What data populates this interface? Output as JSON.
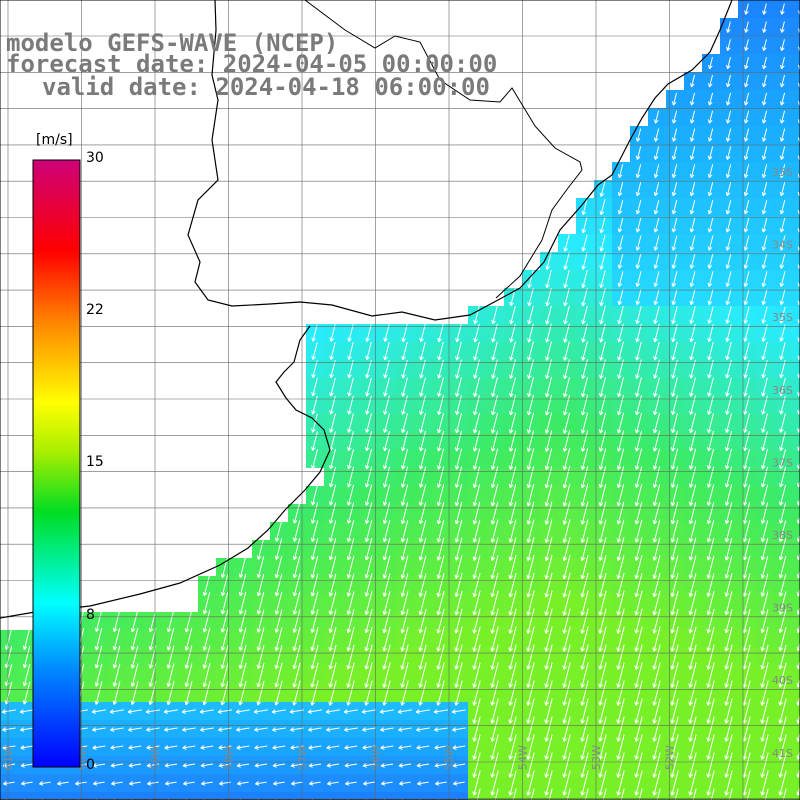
{
  "header": {
    "line1": "modelo GEFS-WAVE (NCEP)",
    "line2": "forecast date: 2024-04-05 00:00:00",
    "line3": "valid date: 2024-04-18 06:00:00"
  },
  "colorbar": {
    "units": "[m/s]",
    "ticks": [
      "30",
      "22",
      "15",
      "8",
      "0"
    ],
    "colors": [
      "#0000ff",
      "#00aaff",
      "#00ffff",
      "#00dd00",
      "#ffff00",
      "#ff7700",
      "#ff0000",
      "#cc0077"
    ]
  },
  "lat_labels": [
    "33S",
    "34S",
    "35S",
    "36S",
    "37S",
    "38S",
    "39S",
    "40S",
    "41S"
  ],
  "lon_labels": [
    "61W",
    "60W",
    "59W",
    "58W",
    "57W",
    "56W",
    "55W",
    "54W",
    "53W",
    "52W"
  ],
  "field": {
    "variable": "wind speed and direction",
    "speed_range_ms": [
      0,
      30
    ],
    "water_color_low": "#1e6cff",
    "water_color_mid": "#22e0ff",
    "water_color_high": "#55f033"
  }
}
